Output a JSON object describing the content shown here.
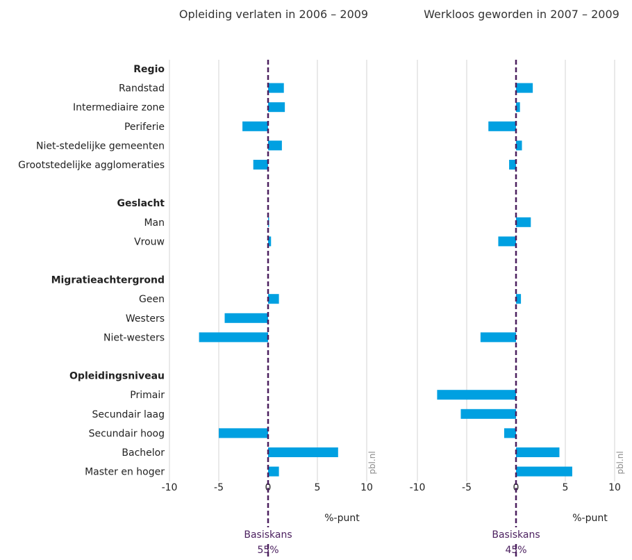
{
  "chart_data": [
    {
      "type": "bar",
      "orientation": "horizontal",
      "title": "Opleiding verlaten in 2006 – 2009",
      "xlabel": "%-punt",
      "xlim": [
        -10,
        10
      ],
      "ticks": [
        "-10",
        "-5",
        "0",
        "5",
        "10"
      ],
      "grid": true,
      "reference_line": {
        "value": 0,
        "label": "Basiskans",
        "rate": "55%"
      },
      "source": "pbl.nl",
      "color": "#00a0e1",
      "reference_color": "#4a1f5e",
      "values": [
        null,
        1.6,
        1.7,
        -2.6,
        1.4,
        -1.5,
        null,
        null,
        0.1,
        0.3,
        null,
        null,
        1.1,
        -4.4,
        -7.0,
        null,
        null,
        0,
        0,
        -5.0,
        7.1,
        1.1
      ]
    },
    {
      "type": "bar",
      "orientation": "horizontal",
      "title": "Werkloos geworden in 2007 – 2009",
      "xlabel": "%-punt",
      "xlim": [
        -10,
        10
      ],
      "ticks": [
        "-10",
        "-5",
        "0",
        "5",
        "10"
      ],
      "grid": true,
      "reference_line": {
        "value": 0,
        "label": "Basiskans",
        "rate": "45%"
      },
      "source": "pbl.nl",
      "color": "#00a0e1",
      "reference_color": "#4a1f5e",
      "values": [
        null,
        1.7,
        0.4,
        -2.8,
        0.6,
        -0.7,
        null,
        null,
        1.5,
        -1.8,
        null,
        null,
        0.5,
        0,
        -3.6,
        null,
        null,
        -8.0,
        -5.6,
        -1.2,
        4.4,
        5.7
      ]
    }
  ],
  "rows": [
    {
      "label": "Regio",
      "header": true
    },
    {
      "label": "Randstad"
    },
    {
      "label": "Intermediaire zone"
    },
    {
      "label": "Periferie"
    },
    {
      "label": "Niet-stedelijke gemeenten"
    },
    {
      "label": "Grootstedelijke agglomeraties"
    },
    {
      "label": ""
    },
    {
      "label": "Geslacht",
      "header": true
    },
    {
      "label": "Man"
    },
    {
      "label": "Vrouw"
    },
    {
      "label": ""
    },
    {
      "label": "Migratieachtergrond",
      "header": true
    },
    {
      "label": "Geen"
    },
    {
      "label": "Westers"
    },
    {
      "label": "Niet-westers"
    },
    {
      "label": ""
    },
    {
      "label": "Opleidingsniveau",
      "header": true
    },
    {
      "label": "Primair"
    },
    {
      "label": "Secundair laag"
    },
    {
      "label": "Secundair hoog"
    },
    {
      "label": "Bachelor"
    },
    {
      "label": "Master en hoger"
    }
  ]
}
